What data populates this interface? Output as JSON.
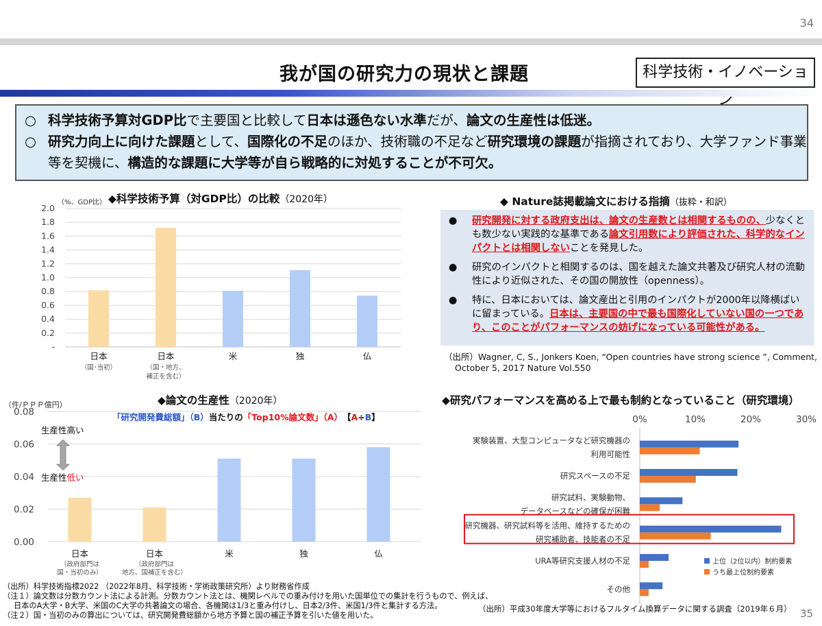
{
  "page": {
    "page_number_top": "34",
    "page_number_bottom": "35",
    "title": "我が国の研究力の現状と課題",
    "tag": "科学技術・イノベーション"
  },
  "summary": {
    "bullet_mark": "○",
    "line1": [
      {
        "t": "科学技術予算対GDP比",
        "b": true
      },
      {
        "t": "で主要国と比較して",
        "b": false
      },
      {
        "t": "日本は遜色ない水準",
        "b": true
      },
      {
        "t": "だが、",
        "b": false
      },
      {
        "t": "論文の生産性は低迷。",
        "b": true
      }
    ],
    "line2": [
      {
        "t": "研究力向上に向けた課題",
        "b": true
      },
      {
        "t": "として、",
        "b": false
      },
      {
        "t": "国際化の不足",
        "b": true
      },
      {
        "t": "のほか、技術職の不足など",
        "b": false
      },
      {
        "t": "研究環境の課題",
        "b": true
      },
      {
        "t": "が指摘されており、大学ファンド事業",
        "b": false
      }
    ],
    "line3": [
      {
        "t": "等を契機に、",
        "b": false
      },
      {
        "t": "構造的な課題に大学等が自ら戦略的に対処することが不可欠。",
        "b": true
      }
    ]
  },
  "budget_chart": {
    "title": "◆科学技術予算（対GDP比）の比較",
    "year": "（2020年）",
    "unit": "（%、GDP比）"
  },
  "productivity_chart": {
    "title": "◆論文の生産性",
    "year": "（2020年）",
    "unit": "（件/ＰＰＰ億円）",
    "subtitle_parts": [
      {
        "t": "「研究開発費総額」（B）",
        "c": "#2b57c8"
      },
      {
        "t": "当たりの",
        "c": "#111111"
      },
      {
        "t": "「Top10%論文数」（A）",
        "c": "#e0161b"
      },
      {
        "t": "　【",
        "c": "#111111"
      },
      {
        "t": "A",
        "c": "#e0161b"
      },
      {
        "t": "÷",
        "c": "#111111"
      },
      {
        "t": "B",
        "c": "#2b57c8"
      },
      {
        "t": "】",
        "c": "#111111"
      }
    ],
    "high_label": "生産性高い",
    "low_label_prefix": "生産性",
    "low_label_red": "低い"
  },
  "nature": {
    "title": "◆ Nature誌掲載論文における指摘",
    "title_note": "（抜粋・和訳）",
    "bullet_mark": "●",
    "b1_red1": "研究開発に対する政府支出は、論文の生産数とは相関するものの、",
    "b1_normal1": "少なくとも数少ない実践的な基準である",
    "b1_red2": "論文引用数により評価された、科学的なインパクトとは相関しない",
    "b1_normal2": "ことを発見した。",
    "b2": "研究のインパクトと相関するのは、国を越えた論文共著及び研究人材の流動性により近似された、その国の開放性（openness）。",
    "b3_normal": "特に、日本においては、論文産出と引用のインパクトが2000年以降横ばいに留まっている。",
    "b3_red": "日本は、主要国の中で最も国際化していない国の一つであり、このことがパフォーマンスの妨げになっている可能性がある。",
    "source_line1": "（出所）Wagner, C, S., Jonkers Koen, “Open countries have strong science ”, Comment,",
    "source_line2": "October 5, 2017 Nature Vol.550"
  },
  "constraint_chart": {
    "title": "◆研究パフォーマンスを高める上で最も制約となっていること（研究環境）"
  },
  "notes": {
    "n1": "（出所）科学技術指標2022 （2022年8月、科学技術・学術政策研究所）より財務省作成",
    "n2": "（注１）論文数は分数カウント法による計測。分数カウント法とは、機関レベルでの重み付けを用いた国単位での集計を行うもので、例えば、",
    "n3": "日本のA大学・B大学、米国のC大学の共著論文の場合、各機関は1/3と重み付けし、日本2/3件、米国1/3件と集計する方法。",
    "n4": "（注２）国・当初のみの算出については、研究開発費総額から地方予算と国の補正予算を引いた値を用いた。",
    "n5": "（出所）平成30年度大学等におけるフルタイム換算データに関する調査（2019年６月）"
  },
  "chart_data": [
    {
      "type": "bar",
      "categories": [
        "日本",
        "日本",
        "米",
        "独",
        "仏"
      ],
      "category_notes": [
        "（国･当初）",
        "（国・地方、補正を含む）",
        "",
        "",
        ""
      ],
      "values": [
        0.82,
        1.72,
        0.81,
        1.11,
        0.74
      ],
      "colors": [
        "#fbdba4",
        "#fbdba4",
        "#b3cdf7",
        "#b3cdf7",
        "#b3cdf7"
      ],
      "ylim": [
        0,
        2.0
      ],
      "yticks": [
        "-",
        "0.2",
        "0.4",
        "0.6",
        "0.8",
        "1.0",
        "1.2",
        "1.4",
        "1.6",
        "1.8",
        "2.0"
      ],
      "grid": true
    },
    {
      "type": "bar",
      "categories": [
        "日本",
        "日本",
        "米",
        "独",
        "仏"
      ],
      "category_notes": [
        "（政府部門は国・当初のみ）",
        "（政府部門は地方、国補正を含む）",
        "",
        "",
        ""
      ],
      "values": [
        0.027,
        0.021,
        0.051,
        0.051,
        0.058
      ],
      "colors": [
        "#fbdba4",
        "#fbdba4",
        "#b3cdf7",
        "#b3cdf7",
        "#b3cdf7"
      ],
      "ylim": [
        0,
        0.08
      ],
      "yticks": [
        "0.00",
        "0.02",
        "0.04",
        "0.06",
        "0.08"
      ],
      "grid": true
    },
    {
      "type": "bar",
      "orientation": "horizontal",
      "categories": [
        "実験装置、大型コンピュータなど研究機器の利用可能性",
        "研究スペースの不足",
        "研究試料、実験動物、データベースなどの確保が困難",
        "研究機器、研究試料等を活用、維持するための研究補助者、技能者の不足",
        "URA等研究支援人材の不足",
        "その他"
      ],
      "series": [
        {
          "name": "上位（2位以内）制約要素",
          "color": "#4472c4",
          "values": [
            17.8,
            17.6,
            7.7,
            25.5,
            5.2,
            4.1
          ]
        },
        {
          "name": "うち最上位制約要素",
          "color": "#ed7d31",
          "values": [
            10.8,
            10.1,
            3.6,
            12.8,
            1.6,
            1.6
          ]
        }
      ],
      "xlim": [
        0,
        30
      ],
      "xticks": [
        "0%",
        "10%",
        "20%",
        "30%"
      ],
      "highlight_index": 3,
      "legend": "bottom-right"
    }
  ]
}
